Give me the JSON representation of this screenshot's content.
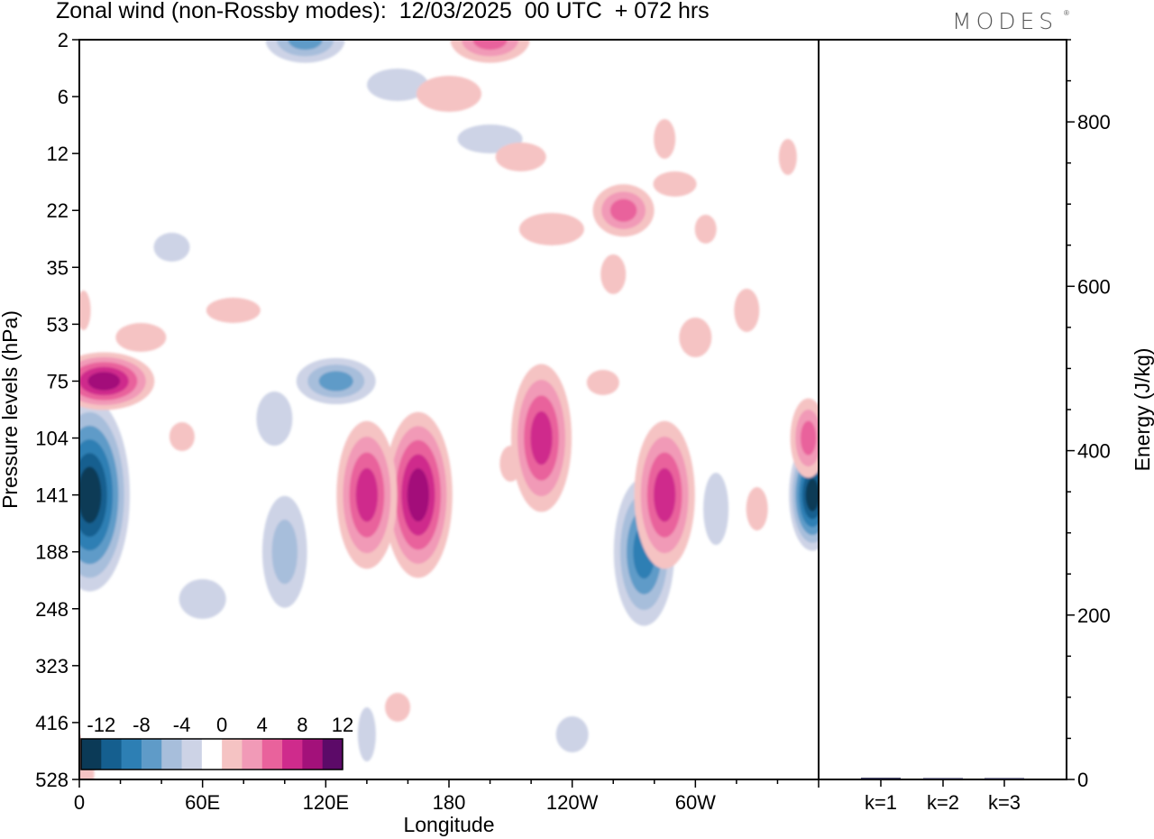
{
  "header": {
    "title": "Zonal wind (non-Rossby modes):  12/03/2025  00 UTC  + 072 hrs",
    "brand": "MODES",
    "brand_mark": "®"
  },
  "chart_data": [
    {
      "type": "heatmap",
      "title": "Zonal wind (non-Rossby modes):  12/03/2025  00 UTC  + 072 hrs",
      "xlabel": "Longitude",
      "ylabel": "Pressure levels (hPa)",
      "x_ticks": [
        "0",
        "60E",
        "120E",
        "180",
        "120W",
        "60W"
      ],
      "x_tick_degrees": [
        0,
        60,
        120,
        180,
        240,
        300
      ],
      "xlim": [
        0,
        360
      ],
      "y_ticks": [
        "2",
        "6",
        "12",
        "22",
        "35",
        "53",
        "75",
        "104",
        "141",
        "188",
        "248",
        "323",
        "416",
        "528"
      ],
      "y_scale": "model levels, pressure increasing downward",
      "colorbar": {
        "tick_labels": [
          "-12",
          "-8",
          "-4",
          "0",
          "4",
          "8",
          "12"
        ],
        "levels": [
          -14,
          -12,
          -10,
          -8,
          -6,
          -4,
          -2,
          2,
          4,
          6,
          8,
          10,
          12,
          14
        ],
        "colors": [
          "#0b3a57",
          "#155f8f",
          "#2d7fb4",
          "#5f9bc8",
          "#a7bedb",
          "#cdd3e6",
          "#ffffff",
          "#f5c3c3",
          "#f19ab7",
          "#e9629c",
          "#cf2b8c",
          "#a3117a",
          "#5c0a68"
        ]
      },
      "features": [
        {
          "value": -13,
          "lon": 5,
          "level": "141"
        },
        {
          "value": -6,
          "lon": 125,
          "level": "75"
        },
        {
          "value": -4,
          "lon": 100,
          "level": "188"
        },
        {
          "value": -8,
          "lon": 275,
          "level": "188"
        },
        {
          "value": -12,
          "lon": 357,
          "level": "141"
        },
        {
          "value": -6,
          "lon": 110,
          "level": "2"
        },
        {
          "value": 10,
          "lon": 12,
          "level": "75"
        },
        {
          "value": 10,
          "lon": 165,
          "level": "141"
        },
        {
          "value": 8,
          "lon": 140,
          "level": "141"
        },
        {
          "value": 8,
          "lon": 225,
          "level": "104"
        },
        {
          "value": 8,
          "lon": 285,
          "level": "141"
        },
        {
          "value": 6,
          "lon": 265,
          "level": "22"
        },
        {
          "value": 6,
          "lon": 200,
          "level": "2"
        },
        {
          "value": 6,
          "lon": 355,
          "level": "104"
        }
      ]
    },
    {
      "type": "bar",
      "ylabel": "Energy (J/kg)",
      "ylim": [
        0,
        900
      ],
      "y_ticks": [
        "0",
        "200",
        "400",
        "600",
        "800"
      ],
      "categories": [
        "k=1",
        "k=2",
        "k=3"
      ],
      "values": [
        2,
        1,
        0.5
      ]
    }
  ]
}
